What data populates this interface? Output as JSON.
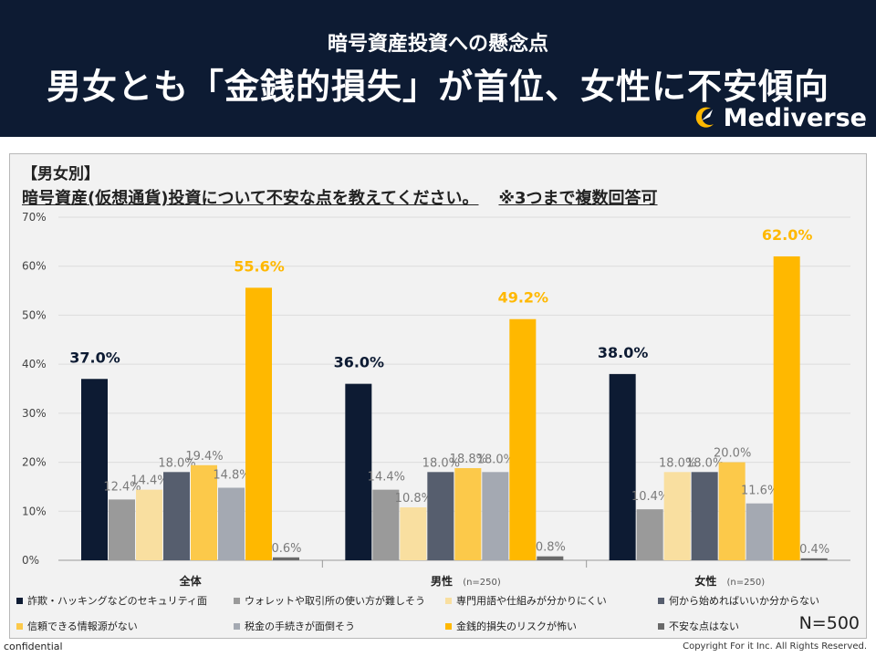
{
  "header": {
    "subtitle": "暗号資産投資への懸念点",
    "headline": "男女とも「金銭的損失」が首位、女性に不安傾向",
    "brand": "Mediverse"
  },
  "panel": {
    "segment_label": "【男女別】",
    "question": "暗号資産(仮想通貨)投資について不安な点を教えてください。",
    "question_note": "※3つまで複数回答可",
    "n_label": "N=500"
  },
  "footer": {
    "left": "confidential",
    "right": "Copyright For it Inc. All Rights Reserved."
  },
  "colors": {
    "navy": "#0d1b33",
    "accent": "#ffb800"
  },
  "chart_data": {
    "type": "bar",
    "title": "暗号資産(仮想通貨)投資について不安な点を教えてください。",
    "ylabel": "",
    "ylim": [
      0,
      70
    ],
    "yticks": [
      "0%",
      "10%",
      "20%",
      "30%",
      "40%",
      "50%",
      "60%",
      "70%"
    ],
    "categories": [
      {
        "label": "全体",
        "sub": ""
      },
      {
        "label": "男性",
        "sub": "(n=250)"
      },
      {
        "label": "女性",
        "sub": "(n=250)"
      }
    ],
    "series": [
      {
        "name": "詐欺・ハッキングなどのセキュリティ面",
        "color": "#0d1b33",
        "values": [
          37.0,
          36.0,
          38.0
        ],
        "labels": [
          "37.0%",
          "36.0%",
          "38.0%"
        ],
        "highlight": true
      },
      {
        "name": "ウォレットや取引所の使い方が難しそう",
        "color": "#9a9a9a",
        "values": [
          12.4,
          14.4,
          10.4
        ],
        "labels": [
          "12.4%",
          "14.4%",
          "10.4%"
        ]
      },
      {
        "name": "専門用語や仕組みが分かりにくい",
        "color": "#f9dfa0",
        "values": [
          14.4,
          10.8,
          18.0
        ],
        "labels": [
          "14.4%",
          "10.8%",
          "18.0%"
        ]
      },
      {
        "name": "何から始めればいいか分からない",
        "color": "#565e6e",
        "values": [
          18.0,
          18.0,
          18.0
        ],
        "labels": [
          "18.0%",
          "18.0%",
          "18.0%"
        ]
      },
      {
        "name": "信頼できる情報源がない",
        "color": "#fcc94a",
        "values": [
          19.4,
          18.8,
          20.0
        ],
        "labels": [
          "19.4%",
          "18.8%",
          "20.0%"
        ]
      },
      {
        "name": "税金の手続きが面倒そう",
        "color": "#a4a9b2",
        "values": [
          14.8,
          18.0,
          11.6
        ],
        "labels": [
          "14.8%",
          "18.0%",
          "11.6%"
        ]
      },
      {
        "name": "金銭的損失のリスクが怖い",
        "color": "#ffb800",
        "values": [
          55.6,
          49.2,
          62.0
        ],
        "labels": [
          "55.6%",
          "49.2%",
          "62.0%"
        ],
        "highlight": true
      },
      {
        "name": "不安な点はない",
        "color": "#6a6a6a",
        "values": [
          0.6,
          0.8,
          0.4
        ],
        "labels": [
          "0.6%",
          "0.8%",
          "0.4%"
        ]
      }
    ]
  }
}
